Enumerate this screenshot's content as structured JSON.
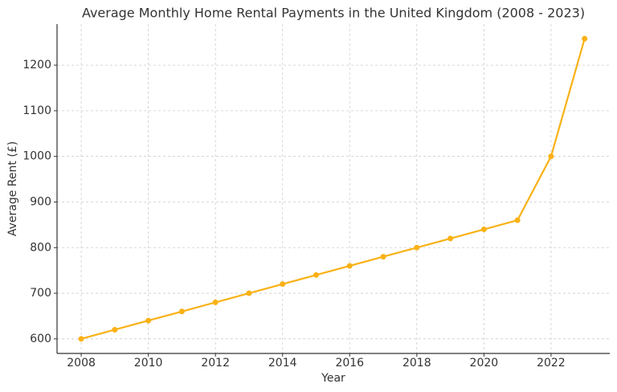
{
  "chart_data": {
    "type": "line",
    "title": "Average Monthly Home Rental Payments in the United Kingdom (2008 - 2023)",
    "x_label": "Year",
    "y_label": "Average Rent (£)",
    "x": [
      2008,
      2009,
      2010,
      2011,
      2012,
      2013,
      2014,
      2015,
      2016,
      2017,
      2018,
      2019,
      2020,
      2021,
      2022,
      2023
    ],
    "series": [
      {
        "name": "Average Rent",
        "color": "#f9b115",
        "values": [
          600,
          620,
          640,
          660,
          680,
          700,
          720,
          740,
          760,
          780,
          800,
          820,
          840,
          860,
          1000,
          1258
        ]
      }
    ],
    "xlim": [
      2007.28,
      2023.75
    ],
    "xticks": [
      2008,
      2010,
      2012,
      2014,
      2016,
      2018,
      2020,
      2022
    ],
    "ylim": [
      568,
      1290
    ],
    "yticks": [
      600,
      700,
      800,
      900,
      1000,
      1100,
      1200
    ],
    "grid": true
  }
}
